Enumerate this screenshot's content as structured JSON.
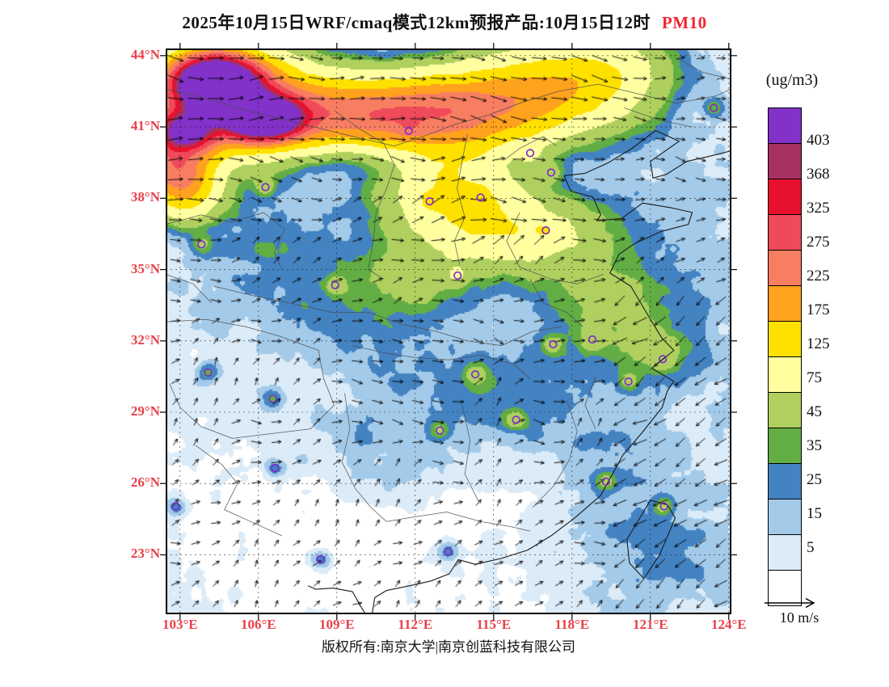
{
  "title": {
    "text": "2025年10月15日WRF/cmaq模式12km预报产品:10月15日12时",
    "species": "PM10"
  },
  "colorbar": {
    "units": "(ug/m3)",
    "levels": [
      5,
      15,
      25,
      35,
      45,
      75,
      125,
      175,
      225,
      275,
      325,
      368,
      403
    ],
    "colors_low_to_high": [
      "#FFFFFF",
      "#DCEBF8",
      "#A3CAE9",
      "#4483C2",
      "#62AE45",
      "#AFD05F",
      "#FFFFA0",
      "#FFE100",
      "#FFA21E",
      "#F87E62",
      "#EF4A5A",
      "#E8112D",
      "#A73163",
      "#8231C9"
    ]
  },
  "axes": {
    "lat_ticks": [
      {
        "label": "44°N",
        "value": 44
      },
      {
        "label": "41°N",
        "value": 41
      },
      {
        "label": "38°N",
        "value": 38
      },
      {
        "label": "35°N",
        "value": 35
      },
      {
        "label": "32°N",
        "value": 32
      },
      {
        "label": "29°N",
        "value": 29
      },
      {
        "label": "26°N",
        "value": 26
      },
      {
        "label": "23°N",
        "value": 23
      }
    ],
    "lon_ticks": [
      {
        "label": "103°E",
        "value": 103
      },
      {
        "label": "106°E",
        "value": 106
      },
      {
        "label": "109°E",
        "value": 109
      },
      {
        "label": "112°E",
        "value": 112
      },
      {
        "label": "115°E",
        "value": 115
      },
      {
        "label": "118°E",
        "value": 118
      },
      {
        "label": "121°E",
        "value": 121
      },
      {
        "label": "124°E",
        "value": 124
      }
    ]
  },
  "map": {
    "lon_range": [
      102.45,
      124.1
    ],
    "lat_range": [
      20.5,
      44.3
    ]
  },
  "wind_legend": {
    "label": "10 m/s"
  },
  "footer": {
    "text": "版权所有:南京大学|南京创蓝科技有限公司"
  },
  "markers": {
    "color": "#7D26CD",
    "lonlat": [
      [
        111.75,
        40.84
      ],
      [
        116.4,
        39.9
      ],
      [
        117.2,
        39.08
      ],
      [
        114.5,
        38.03
      ],
      [
        112.55,
        37.87
      ],
      [
        106.27,
        38.47
      ],
      [
        103.82,
        36.06
      ],
      [
        108.94,
        34.34
      ],
      [
        113.62,
        34.75
      ],
      [
        117.0,
        36.65
      ],
      [
        118.78,
        32.06
      ],
      [
        117.28,
        31.86
      ],
      [
        121.47,
        31.23
      ],
      [
        120.16,
        30.29
      ],
      [
        114.3,
        30.59
      ],
      [
        104.07,
        30.67
      ],
      [
        106.55,
        29.56
      ],
      [
        112.94,
        28.23
      ],
      [
        115.86,
        28.68
      ],
      [
        106.63,
        26.65
      ],
      [
        119.3,
        26.08
      ],
      [
        121.52,
        25.04
      ],
      [
        113.26,
        23.13
      ],
      [
        108.37,
        22.82
      ],
      [
        102.83,
        25.04
      ],
      [
        123.43,
        41.8
      ]
    ]
  },
  "colors": {
    "axis_label": "#E8404A",
    "species": "#F5232E",
    "frame": "#000000"
  }
}
